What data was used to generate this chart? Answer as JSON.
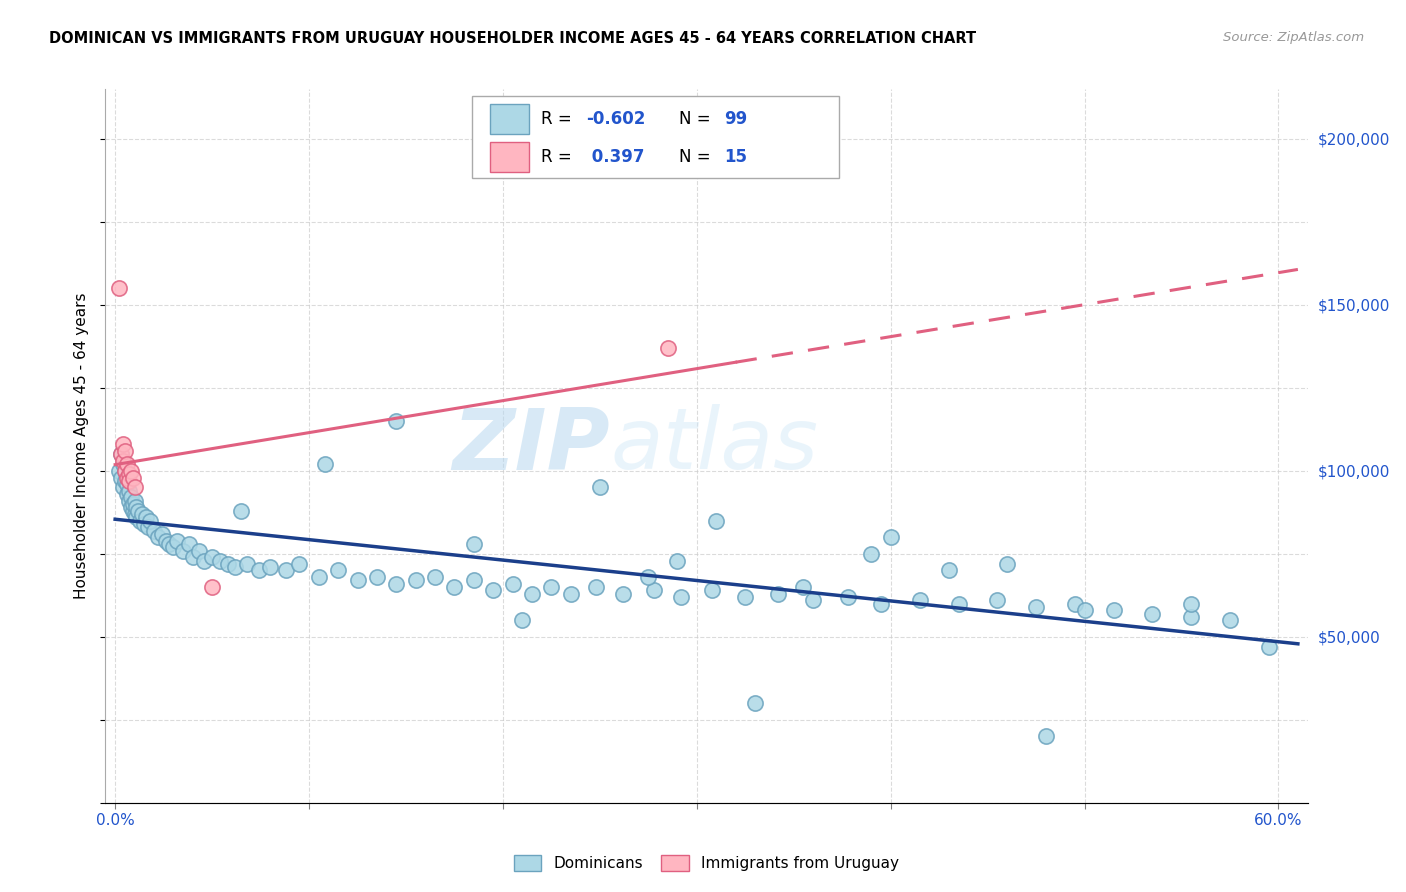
{
  "title": "DOMINICAN VS IMMIGRANTS FROM URUGUAY HOUSEHOLDER INCOME AGES 45 - 64 YEARS CORRELATION CHART",
  "source": "Source: ZipAtlas.com",
  "ylabel": "Householder Income Ages 45 - 64 years",
  "xlim": [
    -0.005,
    0.615
  ],
  "ylim": [
    0,
    215000
  ],
  "xtick_positions": [
    0.0,
    0.1,
    0.2,
    0.3,
    0.4,
    0.5,
    0.6
  ],
  "xticklabels_show": [
    "0.0%",
    "",
    "",
    "",
    "",
    "",
    "60.0%"
  ],
  "ytick_positions": [
    50000,
    100000,
    150000,
    200000
  ],
  "ytick_labels": [
    "$50,000",
    "$100,000",
    "$150,000",
    "$200,000"
  ],
  "dominican_color": "#ADD8E6",
  "dominican_edge": "#6BA3BE",
  "uruguay_color": "#FFB6C1",
  "uruguay_edge": "#E06080",
  "trend_blue": "#1B3F8B",
  "trend_pink": "#E06080",
  "background": "#FFFFFF",
  "watermark": "ZIPAtlas",
  "watermark_color": "#C8DFF0",
  "dominican_x": [
    0.002,
    0.003,
    0.003,
    0.004,
    0.004,
    0.005,
    0.005,
    0.006,
    0.006,
    0.007,
    0.007,
    0.008,
    0.008,
    0.009,
    0.009,
    0.01,
    0.01,
    0.011,
    0.011,
    0.012,
    0.013,
    0.014,
    0.015,
    0.016,
    0.017,
    0.018,
    0.02,
    0.022,
    0.024,
    0.026,
    0.028,
    0.03,
    0.032,
    0.035,
    0.038,
    0.04,
    0.043,
    0.046,
    0.05,
    0.054,
    0.058,
    0.062,
    0.068,
    0.074,
    0.08,
    0.088,
    0.095,
    0.105,
    0.115,
    0.125,
    0.135,
    0.145,
    0.155,
    0.165,
    0.175,
    0.185,
    0.195,
    0.205,
    0.215,
    0.225,
    0.235,
    0.248,
    0.262,
    0.278,
    0.292,
    0.308,
    0.325,
    0.342,
    0.36,
    0.378,
    0.395,
    0.415,
    0.435,
    0.455,
    0.475,
    0.495,
    0.515,
    0.535,
    0.555,
    0.575,
    0.595,
    0.145,
    0.25,
    0.31,
    0.39,
    0.46,
    0.108,
    0.185,
    0.275,
    0.355,
    0.43,
    0.5,
    0.065,
    0.29,
    0.4,
    0.555,
    0.21,
    0.33,
    0.48
  ],
  "dominican_y": [
    100000,
    105000,
    98000,
    102000,
    95000,
    97000,
    100000,
    93000,
    96000,
    91000,
    94000,
    89000,
    92000,
    88000,
    90000,
    87000,
    91000,
    86000,
    89000,
    88000,
    85000,
    87000,
    84000,
    86000,
    83000,
    85000,
    82000,
    80000,
    81000,
    79000,
    78000,
    77000,
    79000,
    76000,
    78000,
    74000,
    76000,
    73000,
    74000,
    73000,
    72000,
    71000,
    72000,
    70000,
    71000,
    70000,
    72000,
    68000,
    70000,
    67000,
    68000,
    66000,
    67000,
    68000,
    65000,
    67000,
    64000,
    66000,
    63000,
    65000,
    63000,
    65000,
    63000,
    64000,
    62000,
    64000,
    62000,
    63000,
    61000,
    62000,
    60000,
    61000,
    60000,
    61000,
    59000,
    60000,
    58000,
    57000,
    56000,
    55000,
    47000,
    115000,
    95000,
    85000,
    75000,
    72000,
    102000,
    78000,
    68000,
    65000,
    70000,
    58000,
    88000,
    73000,
    80000,
    60000,
    55000,
    30000,
    20000
  ],
  "uruguay_x": [
    0.003,
    0.004,
    0.004,
    0.005,
    0.005,
    0.006,
    0.006,
    0.007,
    0.007,
    0.008,
    0.009,
    0.01,
    0.002,
    0.285,
    0.05
  ],
  "uruguay_y": [
    105000,
    108000,
    103000,
    100000,
    106000,
    98000,
    102000,
    99000,
    97000,
    100000,
    98000,
    95000,
    155000,
    137000,
    65000
  ]
}
